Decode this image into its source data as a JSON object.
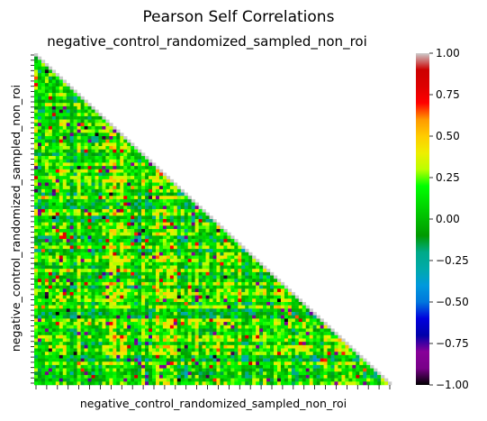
{
  "chart_data": {
    "type": "heatmap",
    "title": "Pearson Self Correlations",
    "subtitle": "negative_control_randomized_sampled_non_roi",
    "xlabel": "negative_control_randomized_sampled_non_roi",
    "ylabel": "negative_control_randomized_sampled_non_roi",
    "mask": "upper triangle (lower triangle shown)",
    "value_range": [
      -1.0,
      1.0
    ],
    "colorbar": {
      "colormap": "nipy_spectral",
      "ticks": [
        -1.0,
        -0.75,
        -0.5,
        -0.25,
        0.0,
        0.25,
        0.5,
        0.75,
        1.0
      ],
      "tick_labels": [
        "−1.00",
        "−0.75",
        "−0.50",
        "−0.25",
        "0.00",
        "0.25",
        "0.50",
        "0.75",
        "1.00"
      ]
    },
    "x_tick_labels_shown": false,
    "y_tick_labels_shown": false,
    "diagonal_value": 1.0,
    "off_diagonal_distribution": "mostly between -0.2 and 0.5, with scattered values near -1.0 and 0.75"
  }
}
